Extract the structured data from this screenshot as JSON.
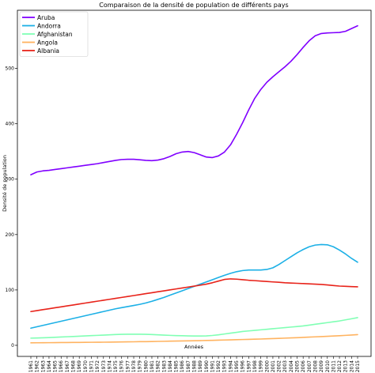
{
  "chart_data": {
    "type": "line",
    "title": "Comparaison de la densité de population de différents pays",
    "xlabel": "Années",
    "ylabel": "Densité de population",
    "x": [
      1961,
      1962,
      1963,
      1964,
      1965,
      1966,
      1967,
      1968,
      1969,
      1970,
      1971,
      1972,
      1973,
      1974,
      1975,
      1976,
      1977,
      1978,
      1979,
      1980,
      1981,
      1982,
      1983,
      1984,
      1985,
      1986,
      1987,
      1988,
      1989,
      1990,
      1991,
      1992,
      1993,
      1994,
      1995,
      1996,
      1997,
      1998,
      1999,
      2000,
      2001,
      2002,
      2003,
      2004,
      2005,
      2006,
      2007,
      2008,
      2009,
      2010,
      2011,
      2012,
      2013,
      2014,
      2015
    ],
    "xlim": [
      1961,
      2015
    ],
    "ylim": [
      -20,
      605
    ],
    "yticks": [
      0,
      100,
      200,
      300,
      400,
      500
    ],
    "grid": false,
    "legend_position": "top-left",
    "series": [
      {
        "name": "Aruba",
        "color": "#8000ff",
        "values": [
          308,
          313,
          315,
          316,
          317.5,
          319,
          320.5,
          322,
          323.5,
          325,
          326.5,
          328,
          330,
          332,
          334,
          335.5,
          336,
          336,
          335,
          334,
          333.5,
          334.5,
          337,
          341,
          346,
          349,
          350,
          348,
          344,
          340,
          339,
          342,
          349,
          362,
          381,
          402,
          425,
          446,
          462,
          475,
          485,
          494,
          503,
          513,
          525,
          538,
          550,
          559,
          563,
          564,
          564.5,
          565,
          567,
          572,
          577
        ]
      },
      {
        "name": "Andorra",
        "color": "#1cb0e6",
        "values": [
          31,
          33.5,
          36,
          38.5,
          41,
          43.5,
          46,
          48.5,
          51,
          53.5,
          56,
          58.5,
          61,
          63.5,
          66,
          68,
          70,
          72,
          74,
          76.5,
          79.5,
          83,
          86.5,
          90.5,
          94.5,
          98.5,
          102.5,
          106.5,
          110.5,
          114.5,
          118.5,
          122.5,
          126.5,
          130,
          133,
          135,
          136,
          136,
          136,
          137,
          140,
          146,
          153,
          160,
          167,
          173,
          178,
          181,
          182,
          181.5,
          178,
          172,
          165,
          157,
          150
        ]
      },
      {
        "name": "Afghanistan",
        "color": "#80ffb4",
        "values": [
          13,
          13.3,
          13.6,
          14,
          14.5,
          15,
          15.5,
          16,
          16.5,
          17,
          17.5,
          18,
          18.5,
          19,
          19.5,
          19.8,
          20,
          20,
          20,
          19.8,
          19.5,
          19,
          18.5,
          18,
          17.6,
          17.3,
          17,
          16.8,
          16.8,
          17,
          17.8,
          19,
          20.5,
          22,
          23.5,
          25,
          26,
          27,
          28,
          29,
          30,
          31,
          32,
          33,
          34,
          35,
          36.5,
          38,
          39.5,
          41,
          42.5,
          44,
          46,
          48,
          50
        ]
      },
      {
        "name": "Angola",
        "color": "#ffb360",
        "values": [
          4.5,
          4.6,
          4.7,
          4.8,
          4.9,
          5,
          5.1,
          5.2,
          5.3,
          5.4,
          5.5,
          5.6,
          5.7,
          5.8,
          6,
          6.1,
          6.3,
          6.4,
          6.6,
          6.7,
          6.9,
          7.1,
          7.3,
          7.5,
          7.7,
          7.9,
          8.1,
          8.3,
          8.5,
          8.8,
          9,
          9.3,
          9.6,
          9.9,
          10.2,
          10.5,
          10.8,
          11.1,
          11.4,
          11.8,
          12.2,
          12.6,
          13,
          13.4,
          13.8,
          14.3,
          14.8,
          15.3,
          15.8,
          16.3,
          16.8,
          17.4,
          18,
          18.6,
          19.3
        ]
      },
      {
        "name": "Albania",
        "color": "#e8231a",
        "values": [
          61,
          62.7,
          64.4,
          66.1,
          67.8,
          69.5,
          71.2,
          72.9,
          74.6,
          76.3,
          78,
          79.7,
          81.4,
          83.1,
          84.8,
          86.5,
          88.2,
          89.9,
          91.6,
          93.3,
          95,
          96.7,
          98.4,
          100.1,
          101.8,
          103.5,
          105.2,
          106.9,
          108.6,
          110.5,
          113,
          116,
          119,
          120,
          119.5,
          118.5,
          117.5,
          116.8,
          116,
          115.3,
          114.5,
          113.8,
          113,
          112.5,
          112,
          111.5,
          111,
          110.5,
          110,
          109,
          108,
          107,
          106.5,
          106,
          105.7
        ]
      }
    ]
  }
}
